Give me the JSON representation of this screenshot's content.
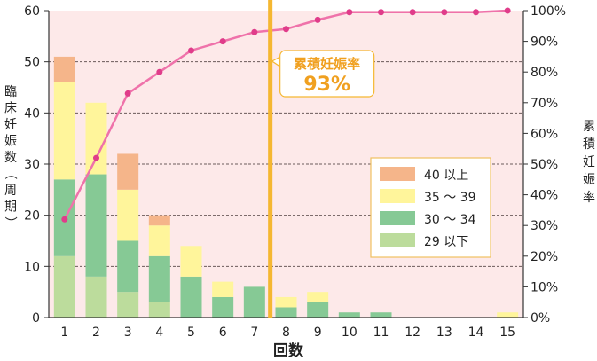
{
  "chart_data": {
    "type": "bar",
    "stacked": true,
    "categories": [
      "1",
      "2",
      "3",
      "4",
      "5",
      "6",
      "7",
      "8",
      "9",
      "10",
      "11",
      "12",
      "13",
      "14",
      "15"
    ],
    "series": [
      {
        "name": "29 以下",
        "color": "#bcdc9c",
        "values": [
          12,
          8,
          5,
          3,
          0,
          0,
          0,
          0,
          0,
          0,
          0,
          0,
          0,
          0,
          0
        ]
      },
      {
        "name": "30 ～ 34",
        "color": "#86c995",
        "values": [
          15,
          20,
          10,
          9,
          8,
          4,
          6,
          2,
          3,
          1,
          1,
          0,
          0,
          0,
          0
        ]
      },
      {
        "name": "35 ～ 39",
        "color": "#fff59b",
        "values": [
          19,
          14,
          10,
          6,
          6,
          3,
          0,
          2,
          2,
          0,
          0,
          0,
          0,
          0,
          1
        ]
      },
      {
        "name": "40 以上",
        "color": "#f5b58a",
        "values": [
          5,
          0,
          7,
          2,
          0,
          0,
          0,
          0,
          0,
          0,
          0,
          0,
          0,
          0,
          0
        ]
      }
    ],
    "cumulative_line": {
      "color": "#ef72aa",
      "values": [
        32,
        52,
        73,
        80,
        87,
        90,
        93,
        94,
        97,
        99.5,
        99.5,
        99.5,
        99.5,
        99.5,
        100
      ]
    },
    "xlabel": "回数",
    "ylabel": "臨床妊娠数（周期）",
    "y2label": "累積妊娠率",
    "ylim": [
      0,
      60
    ],
    "yticks": [
      "0",
      "10",
      "20",
      "30",
      "40",
      "50",
      "60"
    ],
    "y2lim": [
      0,
      100
    ],
    "y2ticks": [
      "0%",
      "10%",
      "20%",
      "30%",
      "40%",
      "50%",
      "60%",
      "70%",
      "80%",
      "90%",
      "100%"
    ],
    "marker_after_category": "7",
    "annotation": {
      "title": "累積妊娠率",
      "value": "93%"
    },
    "legend_position": "center-right",
    "grid": "dashed horizontal",
    "colors": {
      "plot_bg": "#fde9e9",
      "marker_line": "#f5b731",
      "grid": "#6b5a5a"
    }
  }
}
